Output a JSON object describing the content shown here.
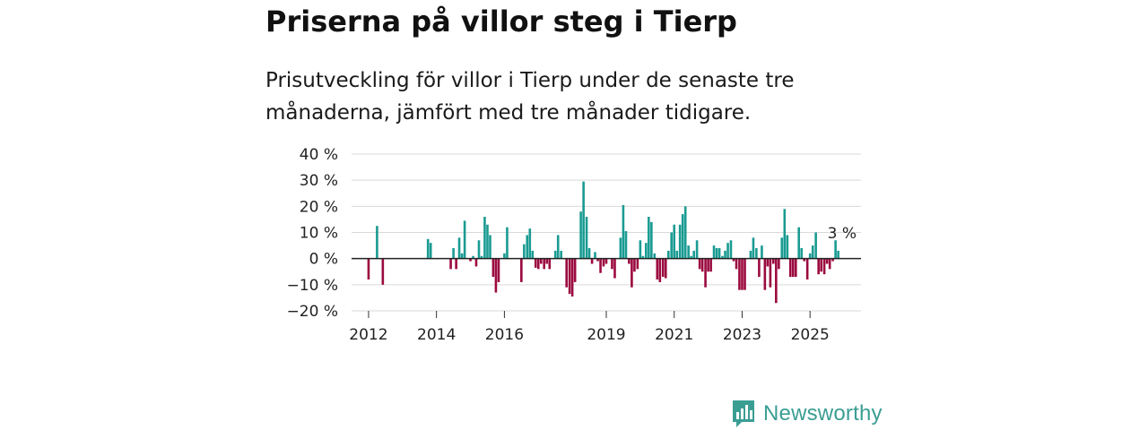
{
  "header": {
    "title": "Priserna på villor steg i Tierp",
    "subtitle": "Prisutveckling för villor i Tierp under de senaste tre månaderna, jämfört med tre månader tidigare."
  },
  "brand": {
    "name": "Newsworthy",
    "color": "#3a9e93"
  },
  "chart_data": {
    "type": "bar",
    "title": "Priserna på villor steg i Tierp",
    "subtitle": "Prisutveckling för villor i Tierp under de senaste tre månaderna, jämfört med tre månader tidigare.",
    "xlabel": "",
    "ylabel": "",
    "ylim": [
      -20,
      40
    ],
    "y_ticks": [
      40,
      30,
      20,
      10,
      0,
      -10,
      -20
    ],
    "y_tick_labels": [
      "40 %",
      "30 %",
      "20 %",
      "10 %",
      "0 %",
      "−10 %",
      "−20 %"
    ],
    "x_range": [
      2011.5,
      2026.5
    ],
    "x_ticks": [
      2012,
      2014,
      2016,
      2019,
      2021,
      2023,
      2025
    ],
    "x_tick_labels": [
      "2012",
      "2014",
      "2016",
      "2019",
      "2021",
      "2023",
      "2025"
    ],
    "grid": true,
    "positive_color": "#1a9b92",
    "negative_color": "#9b0a3f",
    "last_value_label": "3 %",
    "series": [
      {
        "name": "Prisutveckling",
        "points": [
          {
            "x": 2012.0,
            "y": -8
          },
          {
            "x": 2012.25,
            "y": 12.5
          },
          {
            "x": 2012.42,
            "y": -10
          },
          {
            "x": 2013.75,
            "y": 7.5
          },
          {
            "x": 2013.83,
            "y": 6
          },
          {
            "x": 2014.42,
            "y": -4
          },
          {
            "x": 2014.5,
            "y": 4
          },
          {
            "x": 2014.58,
            "y": -4
          },
          {
            "x": 2014.67,
            "y": 8
          },
          {
            "x": 2014.75,
            "y": 2
          },
          {
            "x": 2014.83,
            "y": 14.5
          },
          {
            "x": 2015.0,
            "y": -1
          },
          {
            "x": 2015.08,
            "y": 1
          },
          {
            "x": 2015.17,
            "y": -3
          },
          {
            "x": 2015.25,
            "y": 7
          },
          {
            "x": 2015.33,
            "y": 1
          },
          {
            "x": 2015.42,
            "y": 16
          },
          {
            "x": 2015.5,
            "y": 13
          },
          {
            "x": 2015.58,
            "y": 9
          },
          {
            "x": 2015.67,
            "y": -7
          },
          {
            "x": 2015.75,
            "y": -13
          },
          {
            "x": 2015.83,
            "y": -9
          },
          {
            "x": 2016.0,
            "y": 2
          },
          {
            "x": 2016.08,
            "y": 12
          },
          {
            "x": 2016.5,
            "y": -9
          },
          {
            "x": 2016.58,
            "y": 5.5
          },
          {
            "x": 2016.67,
            "y": 9
          },
          {
            "x": 2016.75,
            "y": 11.5
          },
          {
            "x": 2016.83,
            "y": 3
          },
          {
            "x": 2016.92,
            "y": -3.5
          },
          {
            "x": 2017.0,
            "y": -4
          },
          {
            "x": 2017.08,
            "y": -2
          },
          {
            "x": 2017.17,
            "y": -4
          },
          {
            "x": 2017.25,
            "y": -2
          },
          {
            "x": 2017.33,
            "y": -4
          },
          {
            "x": 2017.5,
            "y": 3
          },
          {
            "x": 2017.58,
            "y": 9
          },
          {
            "x": 2017.67,
            "y": 3
          },
          {
            "x": 2017.83,
            "y": -11
          },
          {
            "x": 2017.92,
            "y": -13.5
          },
          {
            "x": 2018.0,
            "y": -14.5
          },
          {
            "x": 2018.08,
            "y": -9
          },
          {
            "x": 2018.25,
            "y": 18
          },
          {
            "x": 2018.33,
            "y": 29.5
          },
          {
            "x": 2018.42,
            "y": 16
          },
          {
            "x": 2018.5,
            "y": 4
          },
          {
            "x": 2018.58,
            "y": -2
          },
          {
            "x": 2018.67,
            "y": 2.5
          },
          {
            "x": 2018.75,
            "y": -1
          },
          {
            "x": 2018.83,
            "y": -5.5
          },
          {
            "x": 2018.92,
            "y": -3
          },
          {
            "x": 2019.0,
            "y": -2
          },
          {
            "x": 2019.17,
            "y": -4
          },
          {
            "x": 2019.25,
            "y": -7.5
          },
          {
            "x": 2019.42,
            "y": 8
          },
          {
            "x": 2019.5,
            "y": 20.5
          },
          {
            "x": 2019.58,
            "y": 10.5
          },
          {
            "x": 2019.67,
            "y": -2
          },
          {
            "x": 2019.75,
            "y": -11
          },
          {
            "x": 2019.83,
            "y": -5
          },
          {
            "x": 2019.92,
            "y": -4
          },
          {
            "x": 2020.0,
            "y": 7
          },
          {
            "x": 2020.08,
            "y": 1
          },
          {
            "x": 2020.17,
            "y": 6
          },
          {
            "x": 2020.25,
            "y": 16
          },
          {
            "x": 2020.33,
            "y": 14
          },
          {
            "x": 2020.42,
            "y": 2
          },
          {
            "x": 2020.5,
            "y": -8
          },
          {
            "x": 2020.58,
            "y": -9
          },
          {
            "x": 2020.67,
            "y": -7
          },
          {
            "x": 2020.75,
            "y": -7.5
          },
          {
            "x": 2020.83,
            "y": 3
          },
          {
            "x": 2020.92,
            "y": 10
          },
          {
            "x": 2021.0,
            "y": 13
          },
          {
            "x": 2021.08,
            "y": 3
          },
          {
            "x": 2021.17,
            "y": 13
          },
          {
            "x": 2021.25,
            "y": 17
          },
          {
            "x": 2021.33,
            "y": 20
          },
          {
            "x": 2021.42,
            "y": 5
          },
          {
            "x": 2021.5,
            "y": 1
          },
          {
            "x": 2021.58,
            "y": 3
          },
          {
            "x": 2021.67,
            "y": 7
          },
          {
            "x": 2021.75,
            "y": -4
          },
          {
            "x": 2021.83,
            "y": -5
          },
          {
            "x": 2021.92,
            "y": -11
          },
          {
            "x": 2022.0,
            "y": -5
          },
          {
            "x": 2022.08,
            "y": -5
          },
          {
            "x": 2022.17,
            "y": 5
          },
          {
            "x": 2022.25,
            "y": 4
          },
          {
            "x": 2022.33,
            "y": 4
          },
          {
            "x": 2022.42,
            "y": 1
          },
          {
            "x": 2022.5,
            "y": 3
          },
          {
            "x": 2022.58,
            "y": 6
          },
          {
            "x": 2022.67,
            "y": 7
          },
          {
            "x": 2022.75,
            "y": -1
          },
          {
            "x": 2022.83,
            "y": -4
          },
          {
            "x": 2022.92,
            "y": -12
          },
          {
            "x": 2023.0,
            "y": -12
          },
          {
            "x": 2023.08,
            "y": -12
          },
          {
            "x": 2023.25,
            "y": 3
          },
          {
            "x": 2023.33,
            "y": 8
          },
          {
            "x": 2023.42,
            "y": 4
          },
          {
            "x": 2023.5,
            "y": -7
          },
          {
            "x": 2023.58,
            "y": 5
          },
          {
            "x": 2023.67,
            "y": -12
          },
          {
            "x": 2023.75,
            "y": -3
          },
          {
            "x": 2023.83,
            "y": -11
          },
          {
            "x": 2023.92,
            "y": -2
          },
          {
            "x": 2024.0,
            "y": -17
          },
          {
            "x": 2024.08,
            "y": -4
          },
          {
            "x": 2024.17,
            "y": 8
          },
          {
            "x": 2024.25,
            "y": 19
          },
          {
            "x": 2024.33,
            "y": 9
          },
          {
            "x": 2024.42,
            "y": -7
          },
          {
            "x": 2024.5,
            "y": -7
          },
          {
            "x": 2024.58,
            "y": -7
          },
          {
            "x": 2024.67,
            "y": 12
          },
          {
            "x": 2024.75,
            "y": 4
          },
          {
            "x": 2024.83,
            "y": -1
          },
          {
            "x": 2024.92,
            "y": -8
          },
          {
            "x": 2025.0,
            "y": 2
          },
          {
            "x": 2025.08,
            "y": 5
          },
          {
            "x": 2025.17,
            "y": 10
          },
          {
            "x": 2025.25,
            "y": -6
          },
          {
            "x": 2025.33,
            "y": -5
          },
          {
            "x": 2025.42,
            "y": -6
          },
          {
            "x": 2025.5,
            "y": -2
          },
          {
            "x": 2025.58,
            "y": -4
          },
          {
            "x": 2025.67,
            "y": -1
          },
          {
            "x": 2025.75,
            "y": 7
          },
          {
            "x": 2025.83,
            "y": 3
          }
        ]
      }
    ]
  }
}
